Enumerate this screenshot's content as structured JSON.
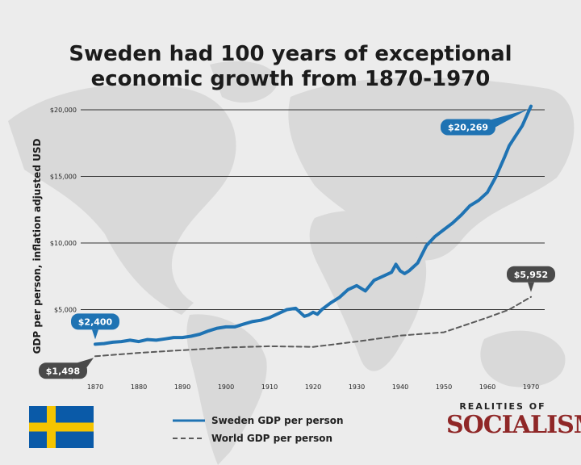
{
  "title_lines": [
    "Sweden had 100 years of exceptional",
    "economic growth from 1870-1970"
  ],
  "colors": {
    "sweden": "#1f73b3",
    "world": "#5a5a5a",
    "callout_dark": "#4a4a4a",
    "brand": "#8f2727",
    "flag_blue": "#0a5aa8",
    "flag_yellow": "#f5c400"
  },
  "icons": {
    "flag": "sweden-flag-icon",
    "logo": "realities-of-socialism-logo"
  },
  "brand": {
    "top": "REALITIES OF",
    "main": "SOCIALISM"
  },
  "chart_data": {
    "type": "line",
    "title": "Sweden had 100 years of exceptional economic growth from 1870-1970",
    "xlabel": "",
    "ylabel": "GDP per person, inflation adjusted USD",
    "xlim": [
      1870,
      1970
    ],
    "ylim": [
      0,
      20000
    ],
    "x_ticks": [
      "1870",
      "1880",
      "1890",
      "1900",
      "1910",
      "1920",
      "1930",
      "1940",
      "1950",
      "1960",
      "1970"
    ],
    "y_ticks": [
      {
        "value": 20000,
        "label": "$20,000"
      },
      {
        "value": 15000,
        "label": "$15,000"
      },
      {
        "value": 10000,
        "label": "$10,000"
      },
      {
        "value": 5000,
        "label": "$5,000"
      },
      {
        "value": 0,
        "label": "$-"
      }
    ],
    "grid": true,
    "legend_position": "bottom-center",
    "series": [
      {
        "name": "Sweden GDP per person",
        "style": "solid",
        "x": [
          1870,
          1872,
          1874,
          1876,
          1878,
          1880,
          1882,
          1884,
          1886,
          1888,
          1890,
          1892,
          1894,
          1896,
          1898,
          1900,
          1902,
          1904,
          1906,
          1908,
          1910,
          1912,
          1914,
          1916,
          1917,
          1918,
          1919,
          1920,
          1921,
          1922,
          1924,
          1926,
          1928,
          1930,
          1932,
          1934,
          1936,
          1938,
          1939,
          1940,
          1941,
          1942,
          1944,
          1946,
          1948,
          1950,
          1952,
          1954,
          1956,
          1958,
          1960,
          1962,
          1964,
          1965,
          1966,
          1968,
          1970
        ],
        "values": [
          2400,
          2450,
          2550,
          2600,
          2700,
          2600,
          2750,
          2700,
          2800,
          2900,
          2900,
          3000,
          3150,
          3400,
          3600,
          3700,
          3700,
          3900,
          4100,
          4200,
          4400,
          4700,
          5000,
          5100,
          4800,
          4500,
          4600,
          4800,
          4650,
          5000,
          5500,
          5900,
          6500,
          6800,
          6400,
          7200,
          7500,
          7800,
          8400,
          7900,
          7700,
          7900,
          8500,
          9800,
          10500,
          11000,
          11500,
          12100,
          12800,
          13200,
          13800,
          15000,
          16500,
          17300,
          17800,
          18800,
          20269
        ]
      },
      {
        "name": "World GDP per person",
        "style": "dashed",
        "x": [
          1870,
          1880,
          1890,
          1900,
          1910,
          1920,
          1930,
          1940,
          1950,
          1960,
          1965,
          1970
        ],
        "values": [
          1498,
          1750,
          1950,
          2150,
          2250,
          2200,
          2600,
          3050,
          3300,
          4400,
          5000,
          5952
        ]
      }
    ],
    "annotations": [
      {
        "series": "Sweden GDP per person",
        "x": 1870,
        "y": 2400,
        "label": "$2,400",
        "placement": "above"
      },
      {
        "series": "Sweden GDP per person",
        "x": 1970,
        "y": 20269,
        "label": "$20,269",
        "placement": "left"
      },
      {
        "series": "World GDP per person",
        "x": 1870,
        "y": 1498,
        "label": "$1,498",
        "placement": "below-left"
      },
      {
        "series": "World GDP per person",
        "x": 1970,
        "y": 5952,
        "label": "$5,952",
        "placement": "above"
      }
    ]
  }
}
